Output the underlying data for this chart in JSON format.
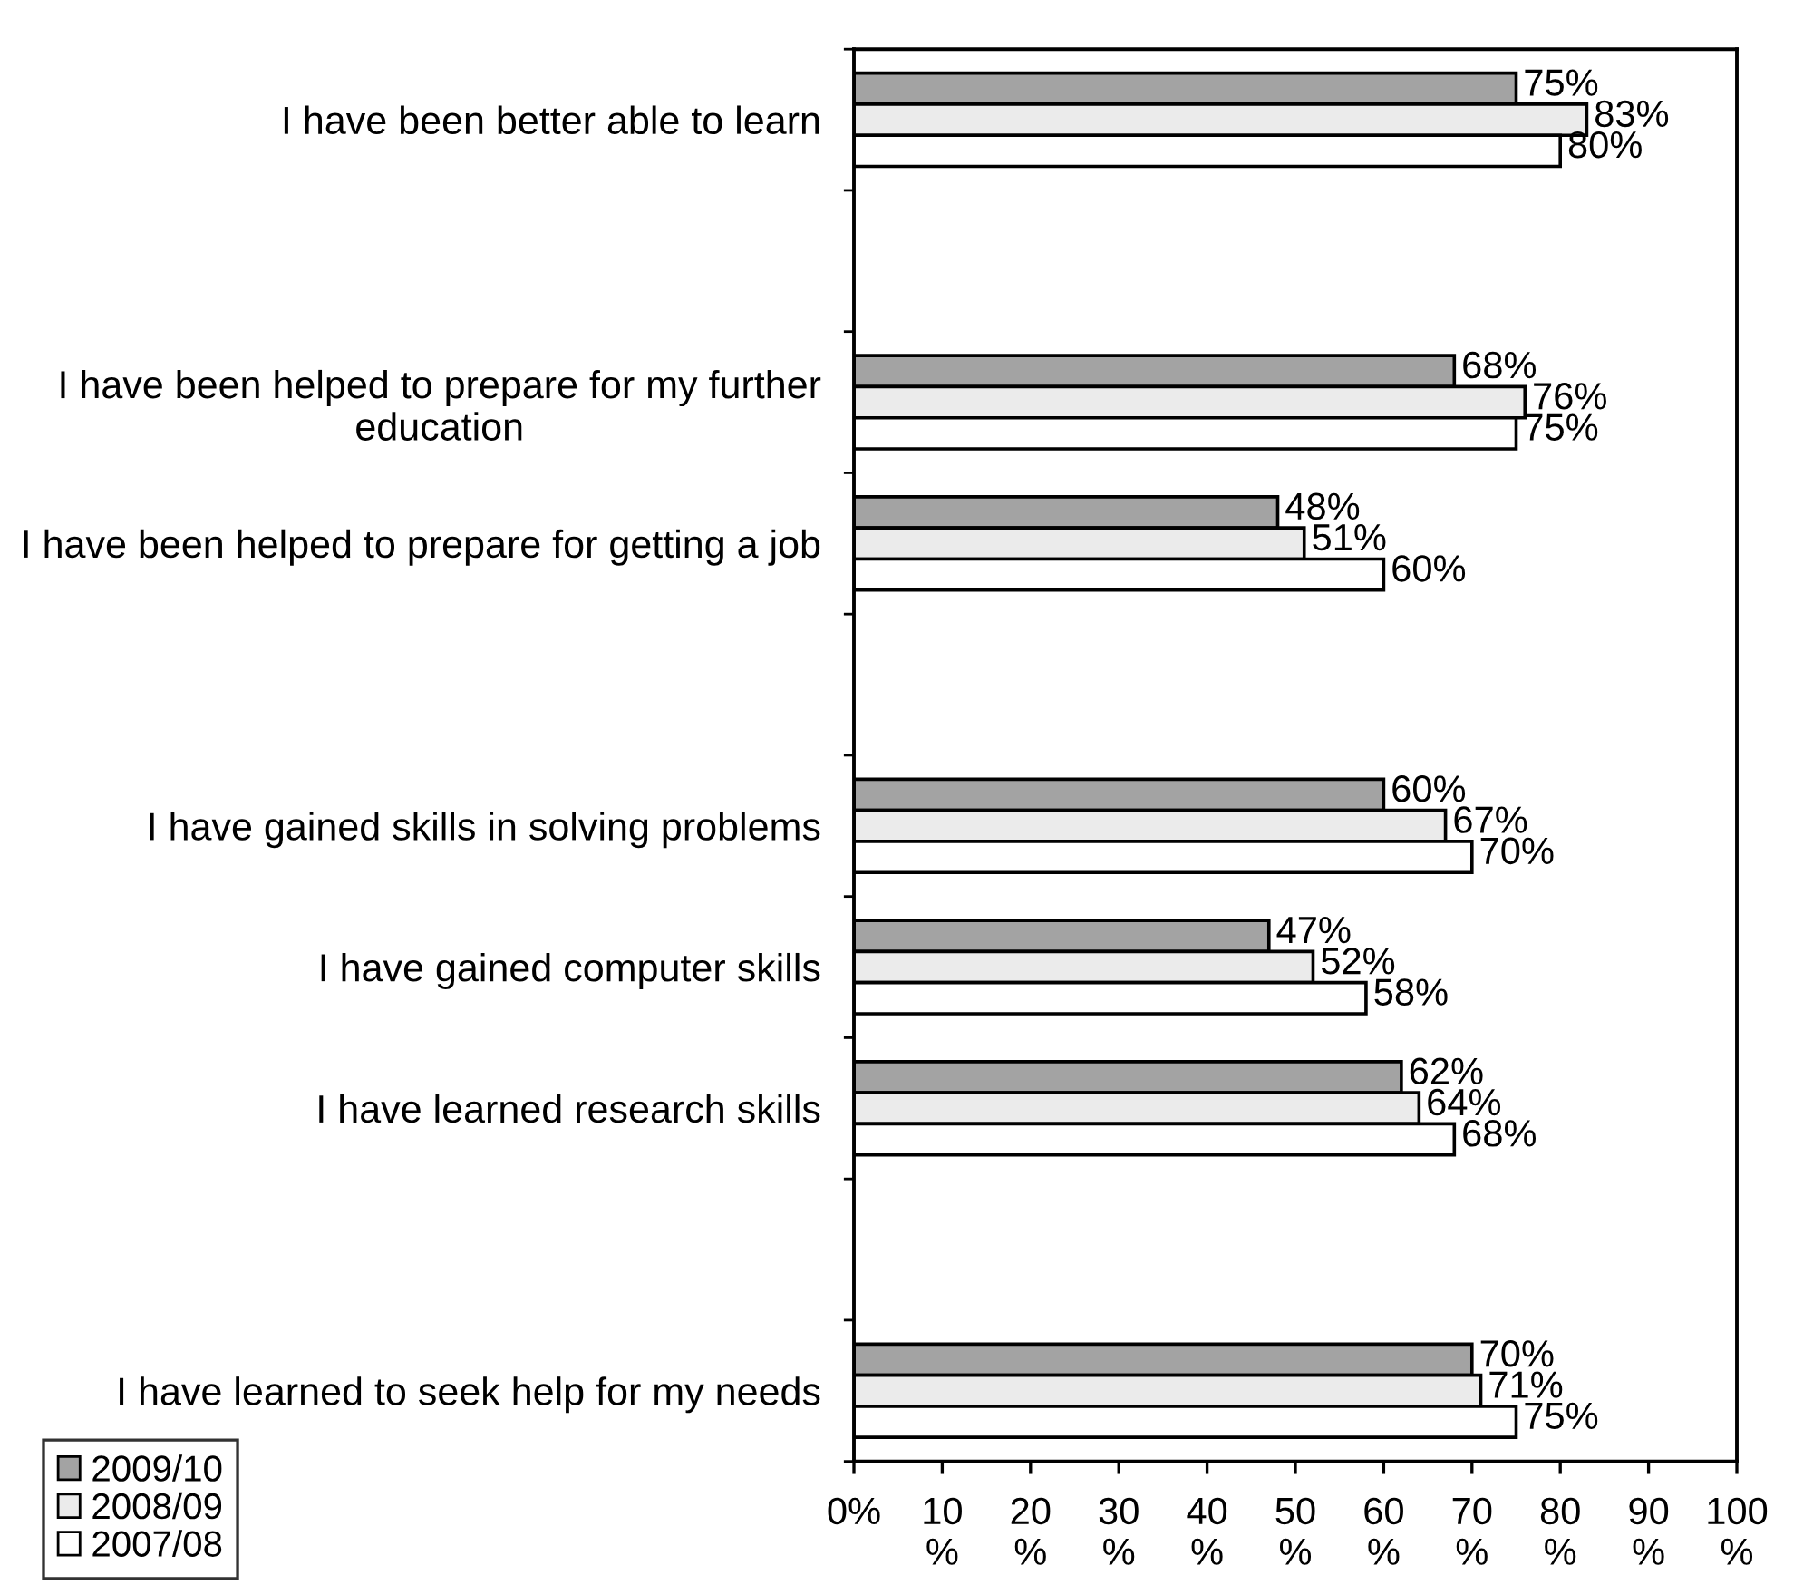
{
  "chart_data": {
    "type": "bar",
    "orientation": "horizontal",
    "categories": [
      "I have been better able to learn",
      null,
      "I have been helped to prepare for my further\neducation",
      "I have been helped to prepare for getting a job",
      null,
      "I have gained skills in solving problems",
      "I have gained computer skills",
      "I have learned research skills",
      null,
      "I have learned to seek help for my needs"
    ],
    "series": [
      {
        "name": "2009/10",
        "color": "#a3a3a3",
        "values": [
          75,
          null,
          68,
          48,
          null,
          60,
          47,
          62,
          null,
          70
        ],
        "value_labels": [
          "75%",
          null,
          "68%",
          "48%",
          null,
          "60%",
          "47%",
          "62%",
          null,
          "70%"
        ]
      },
      {
        "name": "2008/09",
        "color": "#ebebeb",
        "values": [
          83,
          null,
          76,
          51,
          null,
          67,
          52,
          64,
          null,
          71
        ],
        "value_labels": [
          "83%",
          null,
          "76%",
          "51%",
          null,
          "67%",
          "52%",
          "64%",
          null,
          "71%"
        ]
      },
      {
        "name": "2007/08",
        "color": "#ffffff",
        "values": [
          80,
          null,
          75,
          60,
          null,
          70,
          58,
          68,
          null,
          75
        ],
        "value_labels": [
          "80%",
          null,
          "75%",
          "60%",
          null,
          "70%",
          "58%",
          "68%",
          null,
          "75%"
        ]
      }
    ],
    "xlim": [
      0,
      100
    ],
    "xticks": [
      {
        "value": 0,
        "label": "0%"
      },
      {
        "value": 10,
        "label": "10\n%"
      },
      {
        "value": 20,
        "label": "20\n%"
      },
      {
        "value": 30,
        "label": "30\n%"
      },
      {
        "value": 40,
        "label": "40\n%"
      },
      {
        "value": 50,
        "label": "50\n%"
      },
      {
        "value": 60,
        "label": "60\n%"
      },
      {
        "value": 70,
        "label": "70\n%"
      },
      {
        "value": 80,
        "label": "80\n%"
      },
      {
        "value": 90,
        "label": "90\n%"
      },
      {
        "value": 100,
        "label": "100\n%"
      }
    ],
    "grid": false,
    "legend": "bottom left"
  }
}
